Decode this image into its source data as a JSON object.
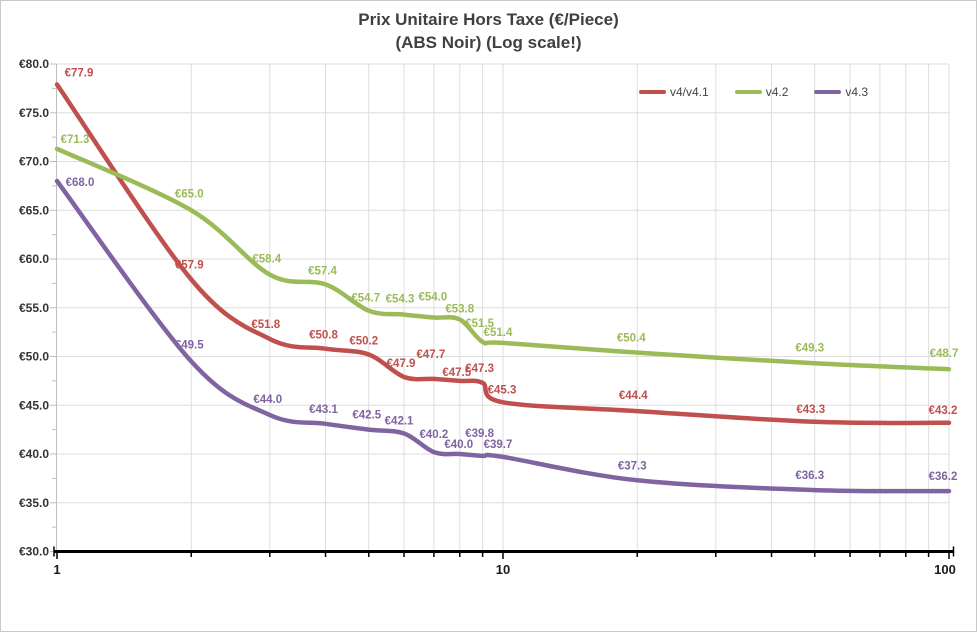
{
  "chart_data": {
    "type": "line",
    "title_line1": "Prix Unitaire Hors Taxe (€/Piece)",
    "title_line2": "(ABS Noir) (Log scale!)",
    "x_scale": "log",
    "xlim": [
      1,
      100
    ],
    "ylim": [
      30,
      80
    ],
    "grid": true,
    "legend_position": "top-right",
    "x": [
      1,
      2,
      3,
      4,
      5,
      6,
      7,
      8,
      9,
      10,
      20,
      50,
      100
    ],
    "x_major_ticks": [
      {
        "value": 1,
        "label": "1"
      },
      {
        "value": 10,
        "label": "10"
      },
      {
        "value": 100,
        "label": "100"
      }
    ],
    "x_minor_ticks": [
      2,
      3,
      4,
      5,
      6,
      7,
      8,
      9,
      20,
      30,
      40,
      50,
      60,
      70,
      80,
      90
    ],
    "y_ticks": [
      {
        "value": 80,
        "label": "€80.0"
      },
      {
        "value": 75,
        "label": "€75.0"
      },
      {
        "value": 70,
        "label": "€70.0"
      },
      {
        "value": 65,
        "label": "€65.0"
      },
      {
        "value": 60,
        "label": "€60.0"
      },
      {
        "value": 55,
        "label": "€55.0"
      },
      {
        "value": 50,
        "label": "€50.0"
      },
      {
        "value": 45,
        "label": "€45.0"
      },
      {
        "value": 40,
        "label": "€40.0"
      },
      {
        "value": 35,
        "label": "€35.0"
      },
      {
        "value": 30,
        "label": "€30.0"
      }
    ],
    "series": [
      {
        "name": "v4/v4.1",
        "color": "#C0504D",
        "values": [
          77.9,
          57.9,
          51.8,
          50.8,
          50.2,
          47.9,
          47.7,
          47.5,
          47.3,
          45.3,
          44.4,
          43.3,
          43.2
        ],
        "labels": [
          "€77.9",
          "€57.9",
          "€51.8",
          "€50.8",
          "€50.2",
          "€47.9",
          "€47.7",
          "€47.5",
          "€47.3",
          "€45.3",
          "€44.4",
          "€43.3",
          "€43.2"
        ]
      },
      {
        "name": "v4.2",
        "color": "#9BBB59",
        "values": [
          71.3,
          65.0,
          58.4,
          57.4,
          54.7,
          54.3,
          54.0,
          53.8,
          51.5,
          51.4,
          50.4,
          49.3,
          48.7
        ],
        "labels": [
          "€71.3",
          "€65.0",
          "€58.4",
          "€57.4",
          "€54.7",
          "€54.3",
          "€54.0",
          "€53.8",
          "€51.5",
          "€51.4",
          "€50.4",
          "€49.3",
          "€48.7"
        ]
      },
      {
        "name": "v4.3",
        "color": "#8064A2",
        "values": [
          68.0,
          49.5,
          44.0,
          43.1,
          42.5,
          42.1,
          40.2,
          40.0,
          39.8,
          39.7,
          37.3,
          36.3,
          36.2
        ],
        "labels": [
          "€68.0",
          "€49.5",
          "€44.0",
          "€43.1",
          "€42.5",
          "€42.1",
          "€40.2",
          "€40.0",
          "€39.8",
          "€39.7",
          "€37.3",
          "€36.3",
          "€36.2"
        ]
      }
    ]
  }
}
